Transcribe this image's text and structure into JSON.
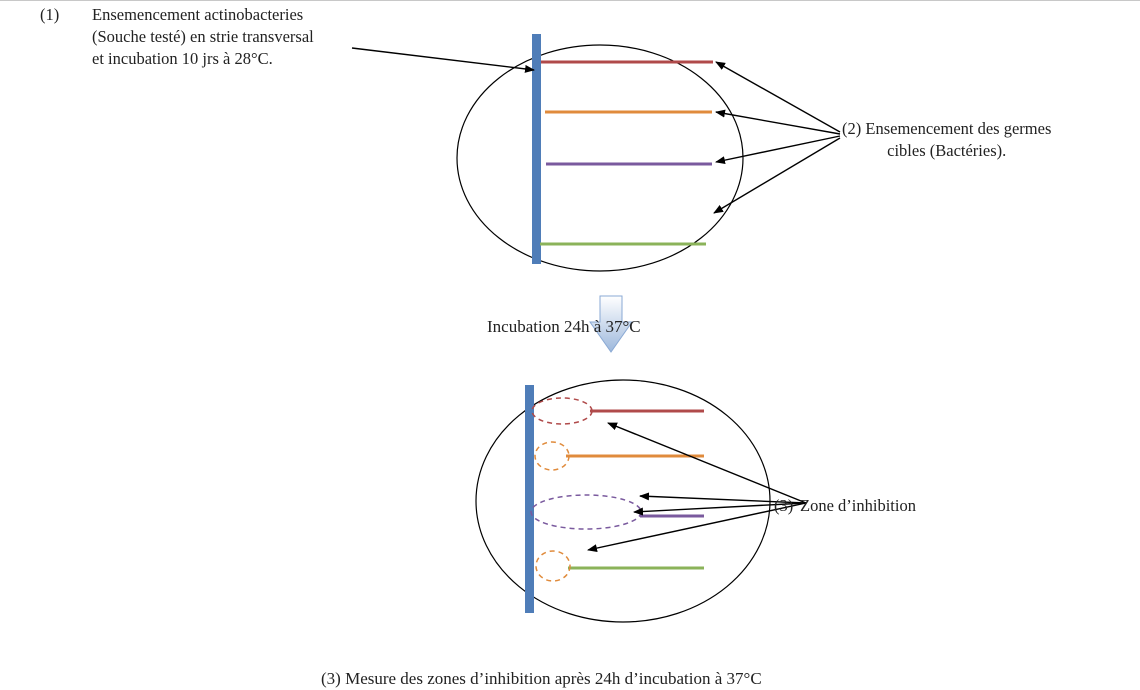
{
  "step1": {
    "number": "(1)",
    "lines": [
      "Ensemencement actinobacteries",
      "(Souche testé) en strie transversal",
      "et incubation 10 jrs à 28°C."
    ]
  },
  "step2": {
    "lines": [
      "(2) Ensemencement des germes",
      "cibles (Bactéries)."
    ]
  },
  "incubation": "Incubation 24h à 37°C",
  "step_zone": {
    "number": "(3)",
    "label": "Zone d’inhibition"
  },
  "caption": "(3) Mesure des zones d’inhibition après 24h d’incubation à 37°C",
  "colors": {
    "actino_streak": "#4f7db8",
    "target_red": "#b04a4a",
    "target_orange": "#e08b3c",
    "target_purple": "#7a5a9e",
    "target_green": "#8bb35a",
    "arrow": "#9db8dc"
  }
}
